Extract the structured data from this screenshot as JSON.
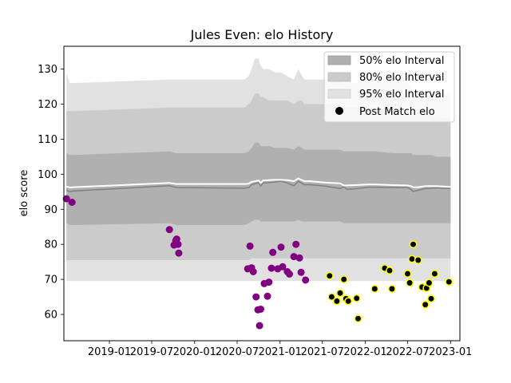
{
  "chart_data": {
    "type": "scatter",
    "title": "Jules Even: elo History",
    "xlabel": "",
    "ylabel": "elo score",
    "xlim": [
      "2018-06-20",
      "2023-02-10"
    ],
    "ylim": [
      52.5,
      136.5
    ],
    "x_ticks": [
      "2019-01",
      "2019-07",
      "2020-01",
      "2020-07",
      "2021-01",
      "2021-07",
      "2022-01",
      "2022-07",
      "2023-01"
    ],
    "y_ticks": [
      60,
      70,
      80,
      90,
      100,
      110,
      120,
      130
    ],
    "grid": false,
    "legend_position": "top-right",
    "legend": {
      "band50": "50% elo Interval",
      "band80": "80% elo Interval",
      "band95": "95% elo Interval",
      "points": "Post Match elo"
    },
    "colors": {
      "band50": "#b0b0b0",
      "band80": "#cbcbcb",
      "band95": "#e1e1e1",
      "median_line": "#ffffff",
      "mean_line": "#808080",
      "points_early": "#800080",
      "points_late": "#000000",
      "points_late_edge": "#ffff00"
    },
    "bands": {
      "x": [
        "2018-07-01",
        "2018-07-15",
        "2018-08-01",
        "2019-09-15",
        "2019-10-15",
        "2020-08-01",
        "2020-08-20",
        "2020-09-01",
        "2020-09-15",
        "2020-10-01",
        "2020-10-10",
        "2020-10-20",
        "2020-11-15",
        "2020-12-10",
        "2021-01-05",
        "2021-02-01",
        "2021-03-01",
        "2021-03-20",
        "2021-04-05",
        "2021-04-15",
        "2021-05-10",
        "2021-07-15",
        "2021-09-15",
        "2021-10-01",
        "2021-10-15",
        "2021-11-15",
        "2022-01-15",
        "2022-02-10",
        "2022-05-01",
        "2022-07-01",
        "2022-07-15",
        "2022-07-25",
        "2022-08-15",
        "2022-09-15",
        "2022-10-10",
        "2022-11-01",
        "2023-01-01"
      ],
      "upper95": [
        129,
        126,
        126,
        127,
        127,
        127,
        128,
        130,
        133,
        133,
        131,
        130,
        130,
        129,
        129,
        128,
        127,
        130,
        128,
        127,
        127,
        127,
        127,
        126,
        126,
        126,
        126,
        126,
        126,
        126,
        125,
        124,
        124,
        124,
        124,
        123,
        123
      ],
      "upper80": [
        118,
        118,
        118,
        119,
        119,
        119,
        120,
        121,
        123,
        123,
        122,
        122,
        121,
        121,
        121,
        121,
        120,
        121,
        121,
        120,
        120,
        120,
        120,
        119,
        119,
        119,
        119,
        119,
        118,
        118,
        118,
        117,
        117,
        117,
        117,
        116,
        116
      ],
      "upper50": [
        106,
        105.5,
        105.5,
        106.5,
        106,
        106,
        106.5,
        107.5,
        109,
        109,
        108,
        108,
        108,
        107.5,
        107.5,
        107.5,
        107,
        108,
        107.5,
        107,
        107,
        107,
        107,
        106.5,
        106.5,
        106.5,
        106.5,
        106.5,
        106,
        106,
        106,
        105.5,
        105.5,
        105.5,
        105.5,
        105,
        105
      ],
      "median": [
        96.5,
        96.2,
        96.3,
        97.5,
        97.2,
        97.2,
        97.3,
        97.8,
        98,
        98.2,
        97.5,
        98.2,
        98.3,
        98.4,
        98.4,
        98.3,
        98,
        98.8,
        98.3,
        98,
        98,
        97.6,
        97.4,
        96.8,
        96.8,
        96.9,
        97.1,
        97.1,
        96.9,
        96.8,
        96.6,
        96.3,
        96.3,
        96.6,
        96.6,
        96.6,
        96.4
      ],
      "mean": [
        95.5,
        95,
        95.2,
        96.7,
        96.2,
        96,
        96.2,
        97,
        97.3,
        97.6,
        96.6,
        97.5,
        97.6,
        97.8,
        98,
        97.5,
        96.7,
        98,
        97.4,
        97,
        97,
        96.6,
        95.9,
        96.4,
        95.7,
        95.8,
        96.3,
        96.3,
        96.2,
        96.2,
        95.7,
        95.1,
        95.4,
        95.9,
        96,
        96.1,
        95.9
      ],
      "lower50": [
        86,
        85.5,
        85.5,
        86,
        85.5,
        85.5,
        86,
        86.5,
        87,
        87,
        86.5,
        86.5,
        86.5,
        86.5,
        86.5,
        86.5,
        86.5,
        87,
        86.5,
        86.5,
        86.5,
        86.5,
        86.5,
        86,
        86,
        86,
        86,
        86,
        86,
        86,
        86,
        86,
        86,
        86,
        86,
        86,
        86
      ],
      "lower80": [
        75.5,
        75.5,
        75.5,
        75.5,
        75.5,
        75.5,
        75.5,
        76,
        76,
        76,
        76,
        76,
        76,
        76,
        76,
        76,
        76,
        76,
        76,
        76,
        76,
        76,
        76,
        76,
        76,
        76,
        76,
        76,
        76,
        76,
        76,
        76,
        76,
        76,
        76,
        76,
        76
      ],
      "lower95": [
        69.5,
        69.5,
        69.5,
        69.5,
        69.5,
        69.5,
        69.5,
        69.5,
        69.5,
        69.5,
        69.5,
        69.5,
        69.5,
        69.5,
        69.5,
        69.5,
        69.5,
        69.5,
        69.5,
        69.5,
        69.5,
        69.5,
        69.5,
        69.5,
        69.5,
        69.5,
        69.5,
        69.5,
        69.5,
        69.5,
        69.5,
        69.5,
        69.5,
        69.5,
        69.5,
        69.5,
        69.5
      ]
    },
    "series": [
      {
        "color": "#800080",
        "points": [
          [
            "2018-07-01",
            93
          ],
          [
            "2018-07-25",
            92
          ],
          [
            "2019-09-15",
            84.2
          ],
          [
            "2019-10-05",
            79.8
          ],
          [
            "2019-10-12",
            81
          ],
          [
            "2019-10-16",
            81.5
          ],
          [
            "2019-10-22",
            80
          ],
          [
            "2019-10-25",
            77.5
          ],
          [
            "2020-08-15",
            73
          ],
          [
            "2020-08-25",
            79.5
          ],
          [
            "2020-09-01",
            73.3
          ],
          [
            "2020-09-08",
            72.2
          ],
          [
            "2020-09-20",
            65
          ],
          [
            "2020-09-28",
            61.3
          ],
          [
            "2020-10-05",
            56.8
          ],
          [
            "2020-10-10",
            61.5
          ],
          [
            "2020-10-25",
            68.8
          ],
          [
            "2020-11-08",
            65.2
          ],
          [
            "2020-11-14",
            69.2
          ],
          [
            "2020-11-25",
            73.2
          ],
          [
            "2020-12-01",
            77.7
          ],
          [
            "2020-12-22",
            73
          ],
          [
            "2021-01-05",
            79.2
          ],
          [
            "2021-01-12",
            73.6
          ],
          [
            "2021-02-01",
            72.2
          ],
          [
            "2021-02-10",
            71.5
          ],
          [
            "2021-03-01",
            76.5
          ],
          [
            "2021-03-10",
            80
          ],
          [
            "2021-03-25",
            76.1
          ],
          [
            "2021-04-01",
            72
          ],
          [
            "2021-04-20",
            69.8
          ]
        ]
      },
      {
        "color": "#000000",
        "edge": "#ffff00",
        "points": [
          [
            "2021-08-01",
            71
          ],
          [
            "2021-08-10",
            65
          ],
          [
            "2021-09-01",
            63.8
          ],
          [
            "2021-09-15",
            66.1
          ],
          [
            "2021-10-01",
            70
          ],
          [
            "2021-10-10",
            64.5
          ],
          [
            "2021-10-20",
            63.8
          ],
          [
            "2021-11-25",
            64.6
          ],
          [
            "2021-12-01",
            58.8
          ],
          [
            "2022-02-10",
            67.3
          ],
          [
            "2022-03-25",
            73.2
          ],
          [
            "2022-04-15",
            72.5
          ],
          [
            "2022-04-25",
            67.3
          ],
          [
            "2022-07-01",
            71.6
          ],
          [
            "2022-07-10",
            69
          ],
          [
            "2022-07-20",
            75.8
          ],
          [
            "2022-07-25",
            80
          ],
          [
            "2022-08-15",
            75.5
          ],
          [
            "2022-09-01",
            67.8
          ],
          [
            "2022-09-15",
            62.8
          ],
          [
            "2022-09-20",
            67.5
          ],
          [
            "2022-10-01",
            69
          ],
          [
            "2022-10-10",
            64.5
          ],
          [
            "2022-10-25",
            71.6
          ],
          [
            "2022-12-25",
            69.3
          ]
        ]
      }
    ]
  }
}
